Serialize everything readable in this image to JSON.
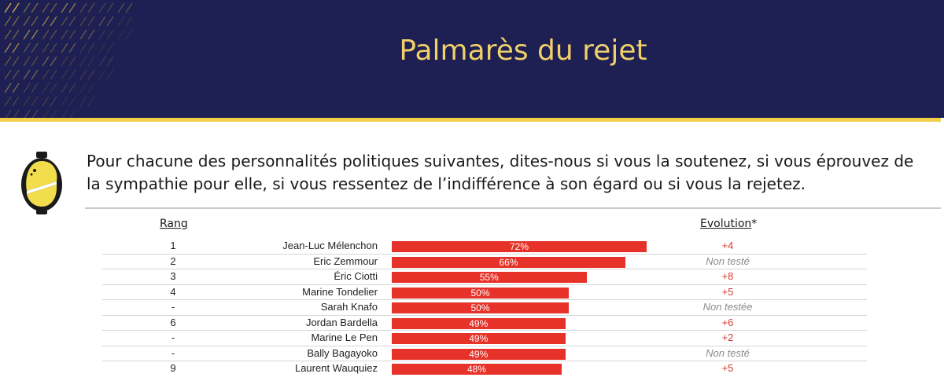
{
  "header": {
    "title": "Palmarès du rejet"
  },
  "question": "Pour chacune des personnalités politiques suivantes, dites-nous si vous la soutenez, si vous éprouvez de la sympathie pour elle, si vous ressentez de l’indifférence à son égard ou si vous la rejetez.",
  "colors": {
    "banner": "#1e1f52",
    "gold": "#f2cf4a",
    "bar": "#e63228",
    "evolution_positive": "#d63a2f",
    "untested": "#8a8a8a"
  },
  "chart_data": {
    "type": "bar",
    "orientation": "horizontal",
    "columns": {
      "rank": "Rang",
      "evolution": "Evolution",
      "evolution_marker": "*"
    },
    "rows": [
      {
        "rank": "1",
        "name": "Jean-Luc Mélenchon",
        "value": 72,
        "label": "72%",
        "evolution": "+4"
      },
      {
        "rank": "2",
        "name": "Eric Zemmour",
        "value": 66,
        "label": "66%",
        "evolution": "Non testé"
      },
      {
        "rank": "3",
        "name": "Éric Ciotti",
        "value": 55,
        "label": "55%",
        "evolution": "+8"
      },
      {
        "rank": "4",
        "name": "Marine Tondelier",
        "value": 50,
        "label": "50%",
        "evolution": "+5"
      },
      {
        "rank": "-",
        "name": "Sarah Knafo",
        "value": 50,
        "label": "50%",
        "evolution": "Non testée"
      },
      {
        "rank": "6",
        "name": "Jordan Bardella",
        "value": 49,
        "label": "49%",
        "evolution": "+6"
      },
      {
        "rank": "-",
        "name": "Marine Le Pen",
        "value": 49,
        "label": "49%",
        "evolution": "+2"
      },
      {
        "rank": "-",
        "name": "Bally Bagayoko",
        "value": 49,
        "label": "49%",
        "evolution": "Non testé"
      },
      {
        "rank": "9",
        "name": "Laurent Wauquiez",
        "value": 48,
        "label": "48%",
        "evolution": "+5"
      }
    ],
    "xlim": [
      0,
      100
    ]
  }
}
